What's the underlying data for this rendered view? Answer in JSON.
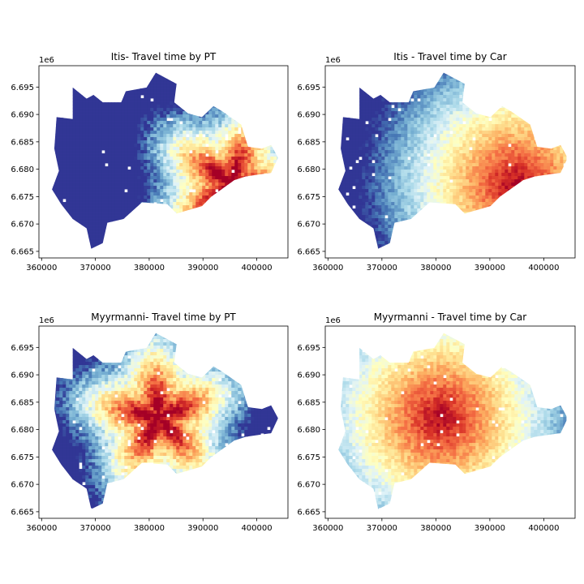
{
  "chart_data": [
    {
      "type": "heatmap",
      "title": "Itis- Travel time by PT",
      "x_offset_label": "",
      "y_offset_label": "1e6",
      "xlim": [
        359500,
        405800
      ],
      "ylim": [
        6.6638,
        6.6989
      ],
      "xticks": [
        360000,
        370000,
        380000,
        390000,
        400000
      ],
      "yticks": [
        6.665,
        6.67,
        6.675,
        6.68,
        6.685,
        6.69,
        6.695
      ],
      "colormap": "RdYlBu",
      "color_limit_saturated_low": "#313695",
      "hotspot": [
        395000,
        6.6775
      ],
      "hotspot_label": "Itis"
    },
    {
      "type": "heatmap",
      "title": "Itis - Travel time by Car",
      "y_offset_label": "1e6",
      "xlim": [
        359500,
        405800
      ],
      "ylim": [
        6.6638,
        6.6989
      ],
      "xticks": [
        360000,
        370000,
        380000,
        390000,
        400000
      ],
      "yticks": [
        6.665,
        6.67,
        6.675,
        6.68,
        6.685,
        6.69,
        6.695
      ],
      "colormap": "RdYlBu",
      "hotspot": [
        394500,
        6.6775
      ]
    },
    {
      "type": "heatmap",
      "title": "Myyrmanni- Travel time by PT",
      "y_offset_label": "1e6",
      "xlim": [
        359500,
        405800
      ],
      "ylim": [
        6.6638,
        6.6989
      ],
      "xticks": [
        360000,
        370000,
        380000,
        390000,
        400000
      ],
      "yticks": [
        6.665,
        6.67,
        6.675,
        6.68,
        6.685,
        6.69,
        6.695
      ],
      "colormap": "RdYlBu",
      "hotspot": [
        381500,
        6.6825
      ]
    },
    {
      "type": "heatmap",
      "title": "Myyrmanni - Travel time by Car",
      "y_offset_label": "1e6",
      "xlim": [
        359500,
        405800
      ],
      "ylim": [
        6.6638,
        6.6989
      ],
      "xticks": [
        360000,
        370000,
        380000,
        390000,
        400000
      ],
      "yticks": [
        6.665,
        6.67,
        6.675,
        6.68,
        6.685,
        6.69,
        6.695
      ],
      "colormap": "RdYlBu",
      "hotspot": [
        380500,
        6.6825
      ]
    }
  ],
  "colors": {
    "ramp": [
      "#a50026",
      "#d73027",
      "#f46d43",
      "#fdae61",
      "#fee090",
      "#ffffbf",
      "#e0f3f8",
      "#abd9e9",
      "#74add1",
      "#4575b4",
      "#313695"
    ]
  }
}
